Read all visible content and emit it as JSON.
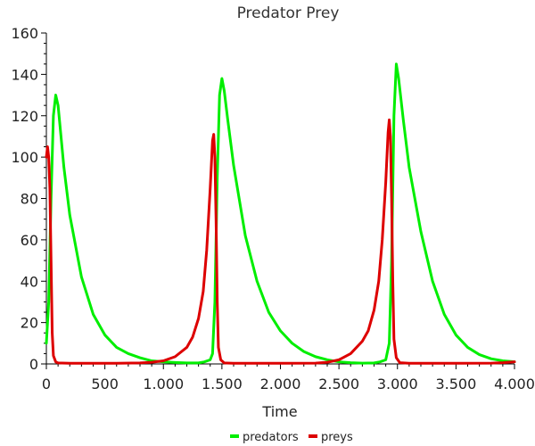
{
  "chart_data": {
    "type": "line",
    "title": "Predator Prey",
    "xlabel": "Time",
    "ylabel": "",
    "xlim": [
      0,
      4000
    ],
    "ylim": [
      0,
      160
    ],
    "x_ticks": [
      0,
      500,
      1000,
      1500,
      2000,
      2500,
      3000,
      3500,
      4000
    ],
    "x_tick_labels": [
      "0",
      "500",
      "1.000",
      "1.500",
      "2.000",
      "2.500",
      "3.000",
      "3.500",
      "4.000"
    ],
    "y_ticks": [
      0,
      20,
      40,
      60,
      80,
      100,
      120,
      140,
      160
    ],
    "y_tick_labels": [
      "0",
      "20",
      "40",
      "60",
      "80",
      "100",
      "120",
      "140",
      "160"
    ],
    "grid": false,
    "legend_position": "bottom-center",
    "series": [
      {
        "name": "predators",
        "color": "#00ee00",
        "points": [
          [
            0,
            10
          ],
          [
            20,
            30
          ],
          [
            40,
            80
          ],
          [
            60,
            120
          ],
          [
            80,
            130
          ],
          [
            100,
            125
          ],
          [
            150,
            95
          ],
          [
            200,
            72
          ],
          [
            300,
            42
          ],
          [
            400,
            24
          ],
          [
            500,
            14
          ],
          [
            600,
            8
          ],
          [
            700,
            5
          ],
          [
            800,
            3
          ],
          [
            900,
            1.5
          ],
          [
            1000,
            1
          ],
          [
            1100,
            0.7
          ],
          [
            1200,
            0.5
          ],
          [
            1300,
            0.5
          ],
          [
            1350,
            1
          ],
          [
            1400,
            2
          ],
          [
            1420,
            5
          ],
          [
            1440,
            30
          ],
          [
            1460,
            90
          ],
          [
            1480,
            130
          ],
          [
            1500,
            138
          ],
          [
            1520,
            132
          ],
          [
            1550,
            118
          ],
          [
            1600,
            96
          ],
          [
            1700,
            62
          ],
          [
            1800,
            40
          ],
          [
            1900,
            25
          ],
          [
            2000,
            16
          ],
          [
            2100,
            10
          ],
          [
            2200,
            6
          ],
          [
            2300,
            3.5
          ],
          [
            2400,
            2
          ],
          [
            2500,
            1
          ],
          [
            2600,
            0.6
          ],
          [
            2700,
            0.4
          ],
          [
            2800,
            0.5
          ],
          [
            2850,
            1
          ],
          [
            2900,
            2
          ],
          [
            2930,
            10
          ],
          [
            2950,
            50
          ],
          [
            2970,
            120
          ],
          [
            2990,
            145
          ],
          [
            3010,
            138
          ],
          [
            3050,
            118
          ],
          [
            3100,
            95
          ],
          [
            3200,
            64
          ],
          [
            3300,
            40
          ],
          [
            3400,
            24
          ],
          [
            3500,
            14
          ],
          [
            3600,
            8
          ],
          [
            3700,
            4.5
          ],
          [
            3800,
            2.5
          ],
          [
            3900,
            1.5
          ],
          [
            4000,
            1
          ]
        ]
      },
      {
        "name": "preys",
        "color": "#dd0000",
        "points": [
          [
            0,
            100
          ],
          [
            10,
            105
          ],
          [
            20,
            100
          ],
          [
            30,
            85
          ],
          [
            40,
            50
          ],
          [
            50,
            15
          ],
          [
            60,
            4
          ],
          [
            80,
            1
          ],
          [
            100,
            0.5
          ],
          [
            200,
            0.3
          ],
          [
            400,
            0.3
          ],
          [
            600,
            0.3
          ],
          [
            800,
            0.5
          ],
          [
            900,
            0.8
          ],
          [
            1000,
            1.5
          ],
          [
            1100,
            3.5
          ],
          [
            1200,
            8
          ],
          [
            1250,
            13
          ],
          [
            1300,
            22
          ],
          [
            1340,
            35
          ],
          [
            1370,
            55
          ],
          [
            1400,
            85
          ],
          [
            1420,
            108
          ],
          [
            1430,
            111
          ],
          [
            1440,
            100
          ],
          [
            1450,
            70
          ],
          [
            1460,
            30
          ],
          [
            1470,
            8
          ],
          [
            1490,
            2
          ],
          [
            1520,
            0.5
          ],
          [
            1600,
            0.3
          ],
          [
            2000,
            0.3
          ],
          [
            2300,
            0.4
          ],
          [
            2400,
            0.8
          ],
          [
            2500,
            2
          ],
          [
            2600,
            5
          ],
          [
            2700,
            11
          ],
          [
            2750,
            16
          ],
          [
            2800,
            26
          ],
          [
            2840,
            40
          ],
          [
            2870,
            60
          ],
          [
            2900,
            88
          ],
          [
            2920,
            112
          ],
          [
            2930,
            118
          ],
          [
            2940,
            110
          ],
          [
            2950,
            80
          ],
          [
            2960,
            40
          ],
          [
            2970,
            12
          ],
          [
            2990,
            3
          ],
          [
            3020,
            0.6
          ],
          [
            3100,
            0.3
          ],
          [
            3500,
            0.3
          ],
          [
            3800,
            0.4
          ],
          [
            3900,
            0.6
          ],
          [
            4000,
            1
          ]
        ]
      }
    ]
  }
}
